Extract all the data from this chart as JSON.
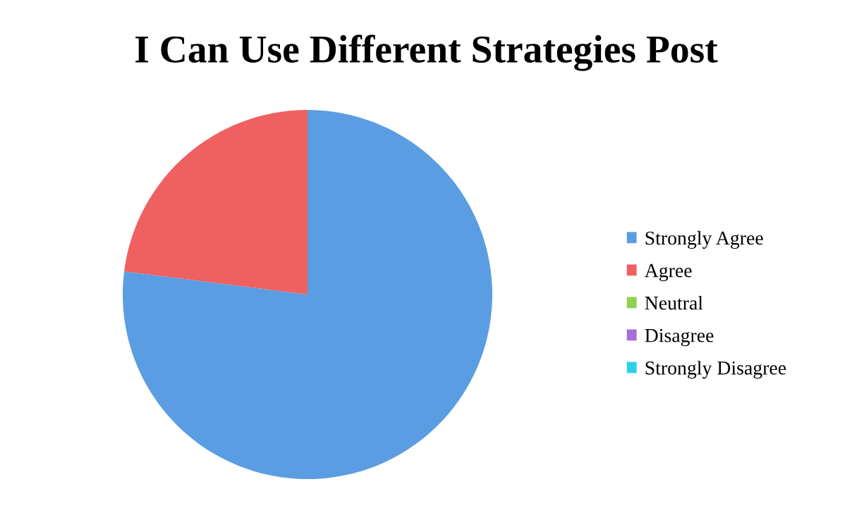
{
  "chart_data": {
    "type": "pie",
    "title": "I Can Use Different Strategies Post",
    "categories": [
      "Strongly Agree",
      "Agree",
      "Neutral",
      "Disagree",
      "Strongly Disagree"
    ],
    "values": [
      77,
      23,
      0,
      0,
      0
    ],
    "colors": [
      "#5b9de2",
      "#ef6060",
      "#92d050",
      "#a56fd4",
      "#2fd0e6"
    ],
    "legend": "right"
  }
}
